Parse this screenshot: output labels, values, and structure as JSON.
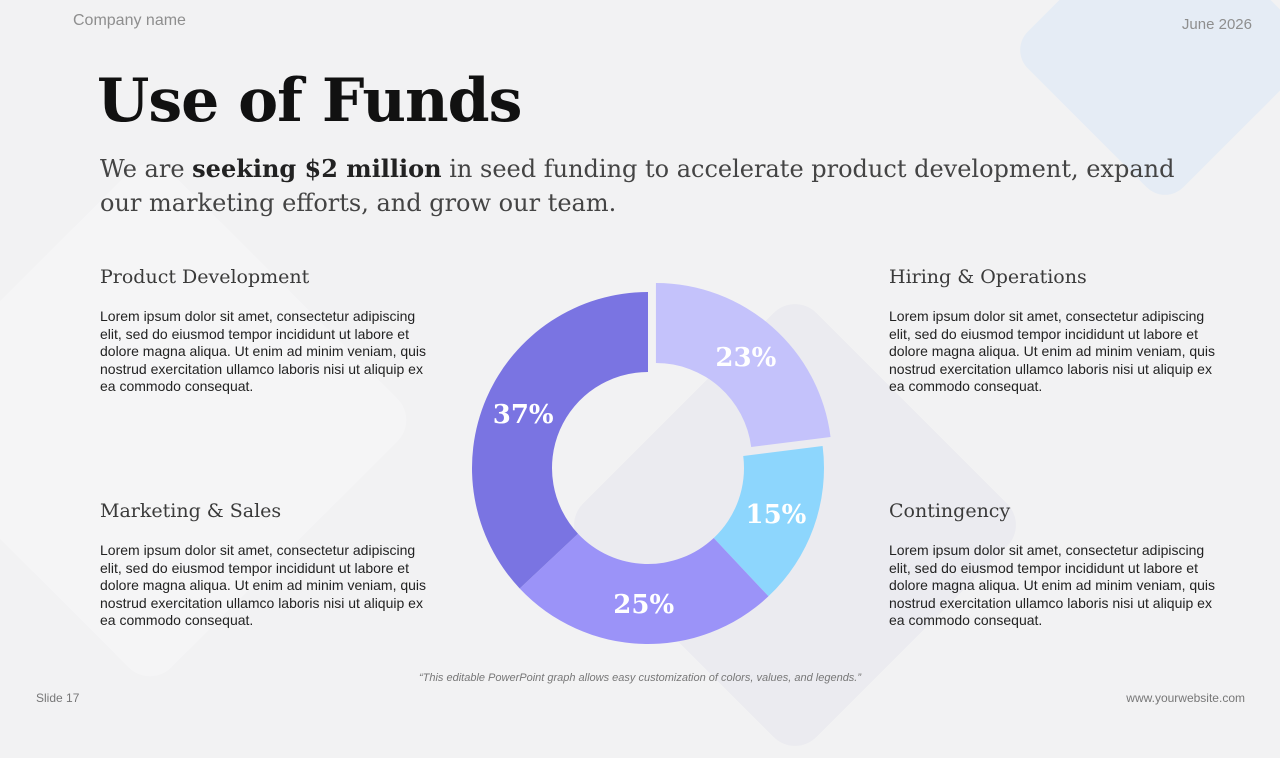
{
  "header": {
    "company": "Company name",
    "date": "June 2026"
  },
  "title": "Use of Funds",
  "subtitle": {
    "pre": "We are ",
    "bold": "seeking $2 million",
    "post": " in seed funding to accelerate product development, expand our marketing efforts, and grow our team."
  },
  "sections": {
    "product_development": {
      "heading": "Product Development",
      "body": "Lorem ipsum dolor sit amet, consectetur adipiscing elit, sed do eiusmod tempor incididunt ut labore et dolore magna aliqua. Ut enim ad minim veniam, quis nostrud exercitation ullamco laboris nisi ut aliquip ex ea commodo consequat."
    },
    "marketing_sales": {
      "heading": "Marketing & Sales",
      "body": "Lorem ipsum dolor sit amet, consectetur adipiscing elit, sed do eiusmod tempor incididunt ut labore et dolore magna aliqua. Ut enim ad minim veniam, quis nostrud exercitation ullamco laboris nisi ut aliquip ex ea commodo consequat."
    },
    "hiring_operations": {
      "heading": "Hiring & Operations",
      "body": "Lorem ipsum dolor sit amet, consectetur adipiscing elit, sed do eiusmod tempor incididunt ut labore et dolore magna aliqua. Ut enim ad minim veniam, quis nostrud exercitation ullamco laboris nisi ut aliquip ex ea commodo consequat."
    },
    "contingency": {
      "heading": "Contingency",
      "body": "Lorem ipsum dolor sit amet, consectetur adipiscing elit, sed do eiusmod tempor incididunt ut labore et dolore magna aliqua. Ut enim ad minim veniam, quis nostrud exercitation ullamco laboris nisi ut aliquip ex ea commodo consequat."
    }
  },
  "chart_data": {
    "type": "pie",
    "variant": "donut",
    "categories": [
      "Hiring & Operations",
      "Contingency",
      "Marketing & Sales",
      "Product Development"
    ],
    "values": [
      23,
      15,
      25,
      37
    ],
    "labels": [
      "23%",
      "15%",
      "25%",
      "37%"
    ],
    "colors": [
      "#c4c2fb",
      "#8dd6fd",
      "#9b93f8",
      "#7a74e2"
    ],
    "exploded": [
      "Hiring & Operations"
    ],
    "start_angle": "12 o'clock, clockwise",
    "title": "",
    "legend": "none"
  },
  "footer": {
    "note": "“This editable PowerPoint graph allows easy customization of colors, values, and legends.”",
    "slide": "Slide 17",
    "website": "www.yourwebsite.com"
  }
}
